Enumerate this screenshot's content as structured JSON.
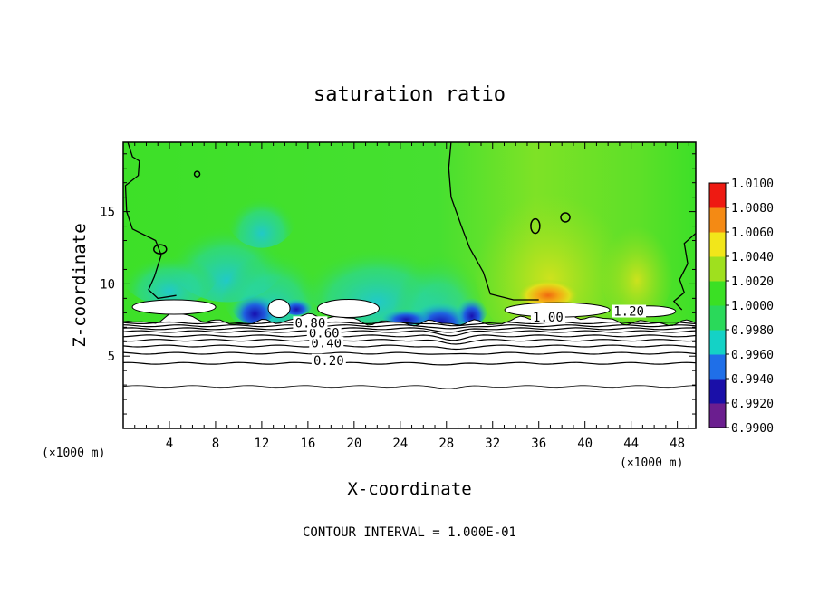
{
  "chart_data": {
    "type": "heatmap",
    "title": "saturation ratio",
    "xlabel": "X-coordinate",
    "ylabel": "Z-coordinate",
    "x_unit_label": "(×1000 m)",
    "z_unit_label": "(×1000 m)",
    "xlim": [
      0,
      49.6
    ],
    "ylim": [
      0,
      19.8
    ],
    "x_ticks": [
      4,
      8,
      12,
      16,
      20,
      24,
      28,
      32,
      36,
      40,
      44,
      48
    ],
    "y_ticks": [
      5,
      10,
      15
    ],
    "x_tick_labels": [
      "4",
      "8",
      "12",
      "16",
      "20",
      "24",
      "28",
      "32",
      "36",
      "40",
      "44",
      "48"
    ],
    "y_tick_labels": [
      "5",
      "10",
      "15"
    ],
    "colorbar": {
      "min": 0.99,
      "max": 1.01,
      "levels": [
        {
          "value": 0.99,
          "label": "0.9900",
          "color": "#6b1e8f"
        },
        {
          "value": 0.992,
          "label": "0.9920",
          "color": "#1a0fa8"
        },
        {
          "value": 0.994,
          "label": "0.9940",
          "color": "#1f6fe8"
        },
        {
          "value": 0.996,
          "label": "0.9960",
          "color": "#14d2c6"
        },
        {
          "value": 0.998,
          "label": "0.9980",
          "color": "#2ad95a"
        },
        {
          "value": 1.0,
          "label": "1.0000",
          "color": "#3ae024"
        },
        {
          "value": 1.002,
          "label": "1.0020",
          "color": "#9fe01e"
        },
        {
          "value": 1.004,
          "label": "1.0040",
          "color": "#f2e61a"
        },
        {
          "value": 1.006,
          "label": "1.0060",
          "color": "#f48a14"
        },
        {
          "value": 1.008,
          "label": "1.0080",
          "color": "#ee1a12"
        },
        {
          "value": 1.01,
          "label": "1.0100",
          "color": "#f2a0a8"
        }
      ]
    },
    "contour_levels": [
      0.1,
      0.2,
      0.3,
      0.4,
      0.5,
      0.6,
      0.7,
      0.8,
      0.9,
      1.0,
      1.2
    ],
    "contour_heights_km": [
      2.9,
      4.5,
      5.2,
      5.7,
      6.1,
      6.4,
      6.7,
      6.9,
      7.1,
      7.3
    ],
    "contour_labels": [
      {
        "text": "0.20",
        "x": 17.8,
        "z": 4.4
      },
      {
        "text": "0.40",
        "x": 17.6,
        "z": 5.6
      },
      {
        "text": "0.60",
        "x": 17.4,
        "z": 6.3
      },
      {
        "text": "0.80",
        "x": 16.2,
        "z": 7.0
      },
      {
        "text": "1.00",
        "x": 36.8,
        "z": 7.4
      },
      {
        "text": "1.20",
        "x": 43.8,
        "z": 7.8
      }
    ],
    "footer": "CONTOUR INTERVAL = 1.000E-01"
  }
}
